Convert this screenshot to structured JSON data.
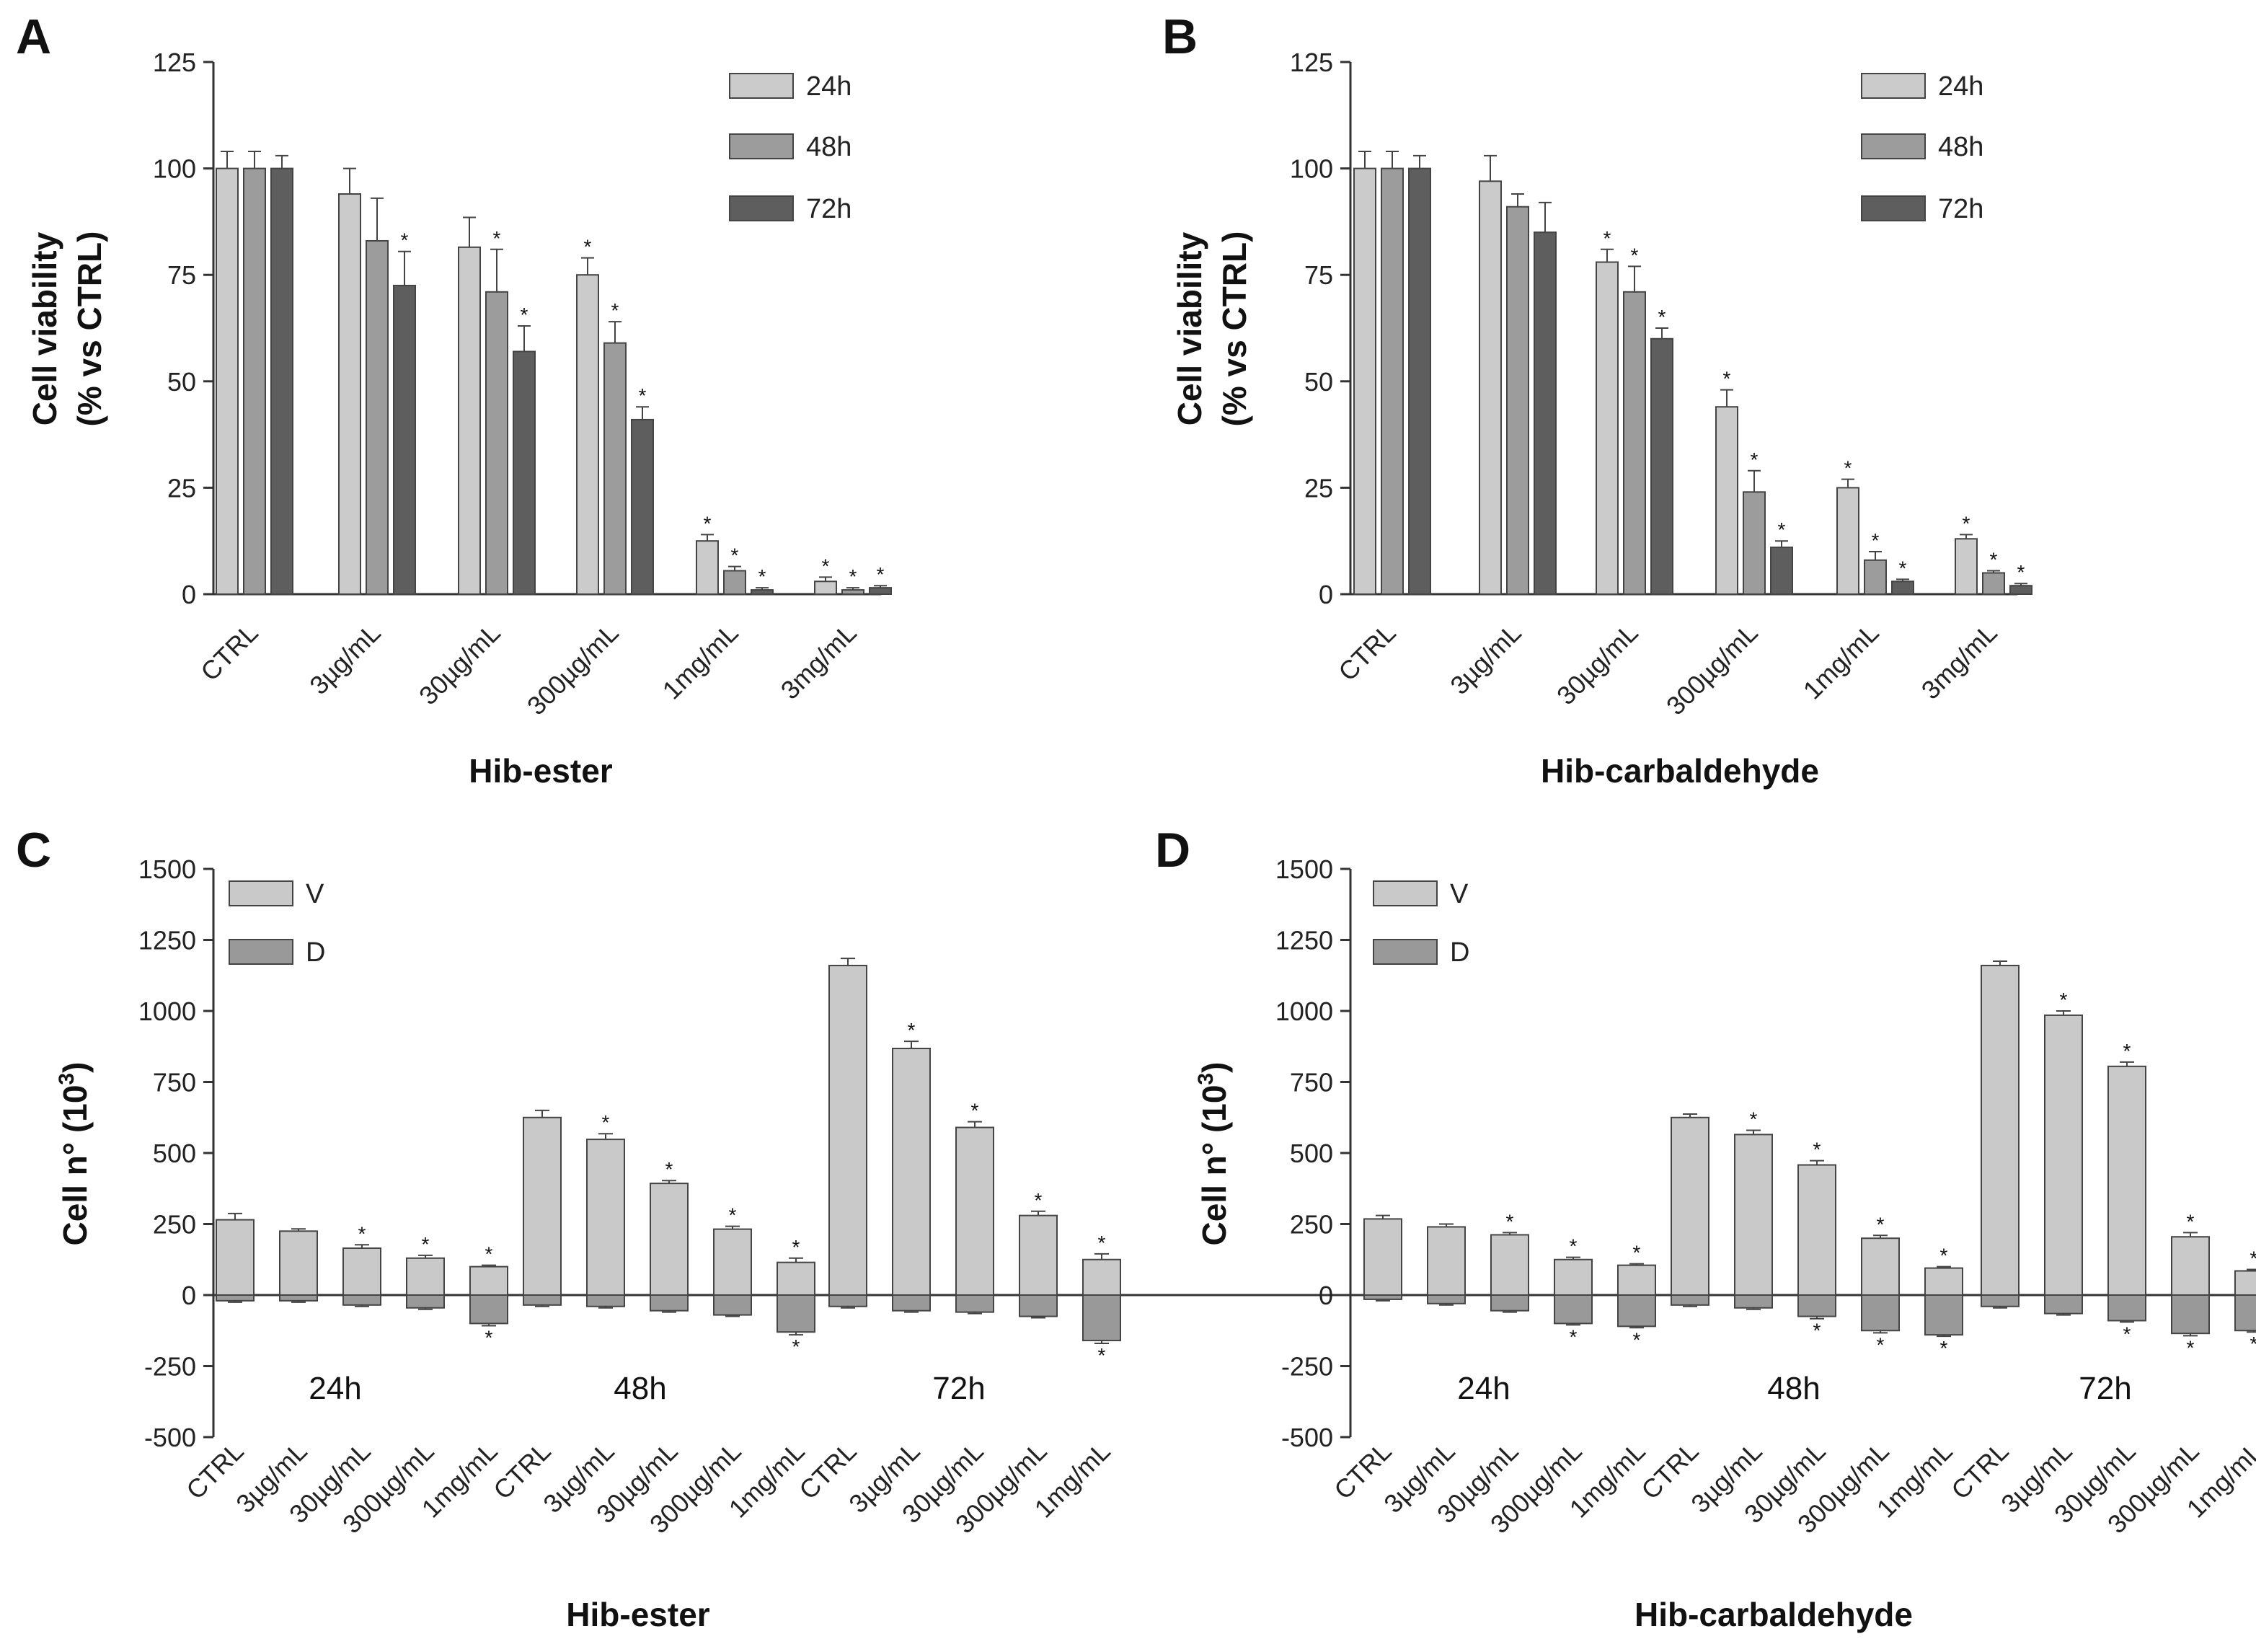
{
  "colors": {
    "h24": "#cbcbcb",
    "h48": "#9c9c9c",
    "h72": "#5e5e5e",
    "V": "#c9c9c9",
    "D": "#999999",
    "ink": "#222222"
  },
  "chart_data": [
    {
      "panel": "A",
      "type": "bar",
      "title": "",
      "xlabel": "Hib-ester",
      "ylabel": [
        "Cell viability",
        "(% vs CTRL)"
      ],
      "ylim": [
        0,
        125
      ],
      "yticks": [
        0,
        25,
        50,
        75,
        100,
        125
      ],
      "categories": [
        "CTRL",
        "3µg/mL",
        "30µg/mL",
        "300µg/mL",
        "1mg/mL",
        "3mg/mL"
      ],
      "legend_position": "top-right",
      "series": [
        {
          "name": "24h",
          "values": [
            100,
            94,
            81.5,
            75,
            12.5,
            3
          ],
          "errors": [
            4,
            6,
            7,
            4,
            1.5,
            1
          ],
          "significant": [
            false,
            false,
            false,
            true,
            true,
            true
          ]
        },
        {
          "name": "48h",
          "values": [
            100,
            83,
            71,
            59,
            5.5,
            1
          ],
          "errors": [
            4,
            10,
            10,
            5,
            1,
            0.5
          ],
          "significant": [
            false,
            false,
            true,
            true,
            true,
            true
          ]
        },
        {
          "name": "72h",
          "values": [
            100,
            72.5,
            57,
            41,
            1,
            1.5
          ],
          "errors": [
            3,
            8,
            6,
            3,
            0.5,
            0.5
          ],
          "significant": [
            false,
            true,
            true,
            true,
            true,
            true
          ]
        }
      ],
      "star": "*"
    },
    {
      "panel": "B",
      "type": "bar",
      "title": "",
      "xlabel": "Hib-carbaldehyde",
      "ylabel": [
        "Cell viability",
        "(% vs CTRL)"
      ],
      "ylim": [
        0,
        125
      ],
      "yticks": [
        0,
        25,
        50,
        75,
        100,
        125
      ],
      "categories": [
        "CTRL",
        "3µg/mL",
        "30µg/mL",
        "300µg/mL",
        "1mg/mL",
        "3mg/mL"
      ],
      "legend_position": "top-right",
      "series": [
        {
          "name": "24h",
          "values": [
            100,
            97,
            78,
            44,
            25,
            13
          ],
          "errors": [
            4,
            6,
            3,
            4,
            2,
            1
          ],
          "significant": [
            false,
            false,
            true,
            true,
            true,
            true
          ]
        },
        {
          "name": "48h",
          "values": [
            100,
            91,
            71,
            24,
            8,
            5
          ],
          "errors": [
            4,
            3,
            6,
            5,
            2,
            0.5
          ],
          "significant": [
            false,
            false,
            true,
            true,
            true,
            true
          ]
        },
        {
          "name": "72h",
          "values": [
            100,
            85,
            60,
            11,
            3,
            2
          ],
          "errors": [
            3,
            7,
            2.5,
            1.5,
            0.5,
            0.5
          ],
          "significant": [
            false,
            false,
            true,
            true,
            true,
            true
          ]
        }
      ],
      "star": "*"
    },
    {
      "panel": "C",
      "type": "bar",
      "title": "",
      "xlabel": "Hib-ester",
      "ylabel": "Cell n° (10",
      "ylabel_sup": "3",
      "ylabel_end": ")",
      "ylim": [
        -500,
        1500
      ],
      "yticks": [
        -500,
        -250,
        0,
        250,
        500,
        750,
        1000,
        1250,
        1500
      ],
      "groups": [
        "24h",
        "48h",
        "72h"
      ],
      "categories": [
        "CTRL",
        "3µg/mL",
        "30µg/mL",
        "300µg/mL",
        "1mg/mL"
      ],
      "legend_position": "top-left",
      "series": [
        {
          "name": "V",
          "values": [
            [
              265,
              225,
              165,
              130,
              100
            ],
            [
              625,
              548,
              393,
              232,
              115
            ],
            [
              1160,
              868,
              590,
              280,
              125
            ]
          ],
          "errors": [
            [
              22,
              8,
              12,
              10,
              5
            ],
            [
              25,
              20,
              10,
              10,
              15
            ],
            [
              25,
              25,
              20,
              15,
              20
            ]
          ],
          "significant": [
            [
              false,
              false,
              true,
              true,
              true
            ],
            [
              false,
              true,
              true,
              true,
              true
            ],
            [
              false,
              true,
              true,
              true,
              true
            ]
          ]
        },
        {
          "name": "D",
          "values": [
            [
              -20,
              -20,
              -35,
              -45,
              -100
            ],
            [
              -35,
              -40,
              -55,
              -70,
              -130
            ],
            [
              -40,
              -55,
              -60,
              -75,
              -160
            ]
          ],
          "errors": [
            [
              5,
              5,
              5,
              5,
              8
            ],
            [
              5,
              5,
              5,
              5,
              10
            ],
            [
              5,
              5,
              5,
              5,
              10
            ]
          ],
          "significant": [
            [
              false,
              false,
              false,
              false,
              true
            ],
            [
              false,
              false,
              false,
              false,
              true
            ],
            [
              false,
              false,
              false,
              false,
              true
            ]
          ]
        }
      ],
      "star": "*"
    },
    {
      "panel": "D",
      "type": "bar",
      "title": "",
      "xlabel": "Hib-carbaldehyde",
      "ylabel": "Cell n° (10",
      "ylabel_sup": "3",
      "ylabel_end": ")",
      "ylim": [
        -500,
        1500
      ],
      "yticks": [
        -500,
        -250,
        0,
        250,
        500,
        750,
        1000,
        1250,
        1500
      ],
      "groups": [
        "24h",
        "48h",
        "72h"
      ],
      "categories": [
        "CTRL",
        "3µg/mL",
        "30µg/mL",
        "300µg/mL",
        "1mg/mL"
      ],
      "legend_position": "top-left",
      "series": [
        {
          "name": "V",
          "values": [
            [
              268,
              240,
              212,
              125,
              105
            ],
            [
              625,
              565,
              458,
              200,
              95
            ],
            [
              1160,
              985,
              805,
              205,
              85
            ]
          ],
          "errors": [
            [
              12,
              10,
              8,
              8,
              5
            ],
            [
              12,
              15,
              15,
              10,
              5
            ],
            [
              15,
              15,
              15,
              15,
              5
            ]
          ],
          "significant": [
            [
              false,
              false,
              true,
              true,
              true
            ],
            [
              false,
              true,
              true,
              true,
              true
            ],
            [
              false,
              true,
              true,
              true,
              true
            ]
          ]
        },
        {
          "name": "D",
          "values": [
            [
              -15,
              -30,
              -55,
              -100,
              -110
            ],
            [
              -35,
              -45,
              -75,
              -125,
              -140
            ],
            [
              -40,
              -65,
              -90,
              -135,
              -125
            ]
          ],
          "errors": [
            [
              5,
              5,
              5,
              5,
              5
            ],
            [
              5,
              5,
              8,
              8,
              5
            ],
            [
              5,
              5,
              5,
              8,
              5
            ]
          ],
          "significant": [
            [
              false,
              false,
              false,
              true,
              true
            ],
            [
              false,
              false,
              true,
              true,
              true
            ],
            [
              false,
              false,
              true,
              true,
              true
            ]
          ]
        }
      ],
      "star": "*"
    }
  ]
}
